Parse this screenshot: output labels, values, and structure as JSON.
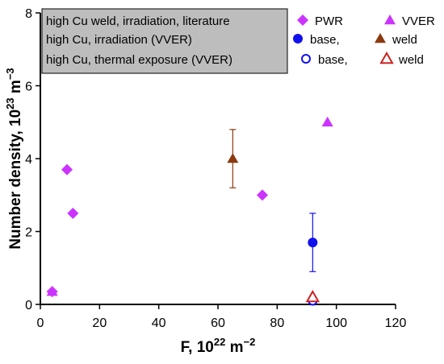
{
  "chart_data": {
    "type": "scatter",
    "title": "",
    "xlabel": "F, 10",
    "xlabel_sup": "22",
    "xlabel_unit": " m",
    "xlabel_unit_sup": "−2",
    "ylabel": "Number density, 10",
    "ylabel_sup": "23",
    "ylabel_unit": " m",
    "ylabel_unit_sup": "−3",
    "xlim": [
      0,
      120
    ],
    "ylim": [
      0,
      8
    ],
    "x_ticks": [
      0,
      20,
      40,
      60,
      80,
      100,
      120
    ],
    "y_ticks": [
      0,
      2,
      4,
      6,
      8
    ],
    "grid": false,
    "legend_placement": "top-left",
    "legend": {
      "rows": [
        {
          "label": "high Cu weld, irradiation, literature",
          "entries": [
            {
              "marker": "diamond-filled",
              "color": "#cc33ff",
              "label": "PWR"
            },
            {
              "marker": "triangle-filled",
              "color": "#cc33ff",
              "label": "VVER"
            }
          ]
        },
        {
          "label": "high Cu, irradiation (VVER)",
          "entries": [
            {
              "marker": "circle-filled",
              "color": "#1111ee",
              "label": "base,"
            },
            {
              "marker": "triangle-filled",
              "color": "#8b3a10",
              "label": "weld"
            }
          ]
        },
        {
          "label": "high Cu, thermal exposure (VVER)",
          "entries": [
            {
              "marker": "circle-open",
              "color": "#1111ee",
              "label": "base,"
            },
            {
              "marker": "triangle-open",
              "color": "#cc2222",
              "label": "weld"
            }
          ]
        }
      ]
    },
    "series": [
      {
        "name": "PWR",
        "marker": "diamond-filled",
        "color": "#cc33ff",
        "points": [
          [
            4,
            0.35
          ],
          [
            9,
            3.7
          ],
          [
            11,
            2.5
          ],
          [
            75,
            3.0
          ]
        ]
      },
      {
        "name": "VVER",
        "marker": "triangle-filled",
        "color": "#cc33ff",
        "points": [
          [
            4,
            0.35
          ],
          [
            97,
            5.0
          ],
          [
            92,
            0.2
          ]
        ]
      },
      {
        "name": "base,",
        "marker": "circle-filled",
        "color": "#1111ee",
        "points": [
          [
            92,
            1.7
          ]
        ],
        "errors": [
          0.8
        ]
      },
      {
        "name": "weld",
        "marker": "triangle-filled",
        "color": "#8b3a10",
        "points": [
          [
            65,
            4.0
          ],
          [
            92,
            0.2
          ]
        ],
        "errors": [
          0.8,
          0
        ]
      },
      {
        "name": "base,",
        "marker": "circle-open",
        "color": "#1111ee",
        "points": [
          [
            92,
            0.1
          ]
        ]
      },
      {
        "name": "weld",
        "marker": "triangle-open",
        "color": "#cc2222",
        "points": [
          [
            92,
            0.2
          ]
        ]
      }
    ]
  }
}
